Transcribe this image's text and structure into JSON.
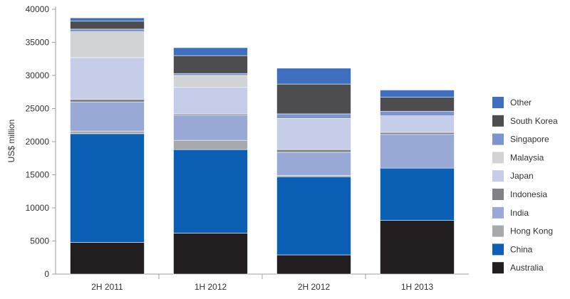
{
  "chart_data": {
    "type": "bar",
    "stacked": true,
    "title": "",
    "xlabel": "",
    "ylabel": "US$ million",
    "ylim": [
      0,
      40000
    ],
    "yticks": [
      0,
      5000,
      10000,
      15000,
      20000,
      25000,
      30000,
      35000,
      40000
    ],
    "grid": false,
    "legend_position": "right",
    "categories": [
      "2H 2011",
      "1H 2012",
      "2H 2012",
      "1H 2013"
    ],
    "series": [
      {
        "name": "Australia",
        "color": "#231f20",
        "values": [
          4800,
          6200,
          2900,
          8100
        ]
      },
      {
        "name": "China",
        "color": "#0b5fb4",
        "values": [
          16400,
          12600,
          11800,
          7900
        ]
      },
      {
        "name": "Hong Kong",
        "color": "#a7a9ac",
        "values": [
          400,
          1400,
          200,
          0
        ]
      },
      {
        "name": "India",
        "color": "#98a9d6",
        "values": [
          4400,
          3800,
          3500,
          5100
        ]
      },
      {
        "name": "Indonesia",
        "color": "#808285",
        "values": [
          400,
          200,
          400,
          300
        ]
      },
      {
        "name": "Japan",
        "color": "#c5cde8",
        "values": [
          6300,
          4000,
          4700,
          2500
        ]
      },
      {
        "name": "Malaysia",
        "color": "#d1d3d4",
        "values": [
          3900,
          1800,
          0,
          0
        ]
      },
      {
        "name": "Singapore",
        "color": "#7b93cf",
        "values": [
          400,
          300,
          700,
          700
        ]
      },
      {
        "name": "South Korea",
        "color": "#4d4d4f",
        "values": [
          1200,
          2700,
          4500,
          2100
        ]
      },
      {
        "name": "Other",
        "color": "#3f6fc0",
        "values": [
          500,
          1200,
          2400,
          1100
        ]
      }
    ]
  }
}
